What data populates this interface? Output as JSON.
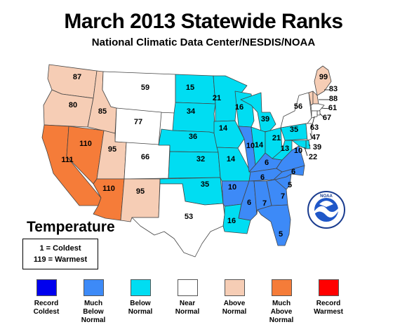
{
  "title": "March 2013 Statewide Ranks",
  "subtitle": "National Climatic Data Center/NESDIS/NOAA",
  "legend_heading": "Temperature",
  "rank_key": {
    "coldest": "1 = Coldest",
    "warmest": "119 = Warmest"
  },
  "categories": [
    {
      "id": "record-coldest",
      "label": [
        "Record",
        "Coldest"
      ],
      "color": "#0000ee"
    },
    {
      "id": "much-below-normal",
      "label": [
        "Much",
        "Below",
        "Normal"
      ],
      "color": "#3d8af7"
    },
    {
      "id": "below-normal",
      "label": [
        "Below",
        "Normal"
      ],
      "color": "#00ddf2"
    },
    {
      "id": "near-normal",
      "label": [
        "Near",
        "Normal"
      ],
      "color": "#ffffff"
    },
    {
      "id": "above-normal",
      "label": [
        "Above",
        "Normal"
      ],
      "color": "#f6cdb5"
    },
    {
      "id": "much-above-normal",
      "label": [
        "Much",
        "Above",
        "Normal"
      ],
      "color": "#f57c39"
    },
    {
      "id": "record-warmest",
      "label": [
        "Record",
        "Warmest"
      ],
      "color": "#ff0000"
    }
  ],
  "states": [
    {
      "id": "WA",
      "rank": "87",
      "category": "above-normal"
    },
    {
      "id": "OR",
      "rank": "80",
      "category": "above-normal"
    },
    {
      "id": "ID",
      "rank": "85",
      "category": "above-normal"
    },
    {
      "id": "MT",
      "rank": "59",
      "category": "near-normal"
    },
    {
      "id": "WY",
      "rank": "77",
      "category": "near-normal"
    },
    {
      "id": "CA",
      "rank": "111",
      "category": "much-above-normal"
    },
    {
      "id": "NV",
      "rank": "110",
      "category": "much-above-normal"
    },
    {
      "id": "UT",
      "rank": "95",
      "category": "above-normal"
    },
    {
      "id": "CO",
      "rank": "66",
      "category": "near-normal"
    },
    {
      "id": "AZ",
      "rank": "110",
      "category": "much-above-normal"
    },
    {
      "id": "NM",
      "rank": "95",
      "category": "above-normal"
    },
    {
      "id": "ND",
      "rank": "15",
      "category": "below-normal"
    },
    {
      "id": "SD",
      "rank": "34",
      "category": "below-normal"
    },
    {
      "id": "NE",
      "rank": "36",
      "category": "below-normal"
    },
    {
      "id": "KS",
      "rank": "32",
      "category": "below-normal"
    },
    {
      "id": "OK",
      "rank": "35",
      "category": "below-normal"
    },
    {
      "id": "TX",
      "rank": "53",
      "category": "near-normal"
    },
    {
      "id": "MN",
      "rank": "21",
      "category": "below-normal"
    },
    {
      "id": "IA",
      "rank": "14",
      "category": "below-normal"
    },
    {
      "id": "MO",
      "rank": "14",
      "category": "below-normal"
    },
    {
      "id": "AR",
      "rank": "10",
      "category": "much-below-normal"
    },
    {
      "id": "LA",
      "rank": "16",
      "category": "below-normal"
    },
    {
      "id": "WI",
      "rank": "16",
      "category": "below-normal"
    },
    {
      "id": "IL",
      "rank": "10",
      "category": "much-below-normal"
    },
    {
      "id": "MI",
      "rank": "39",
      "category": "below-normal"
    },
    {
      "id": "IN",
      "rank": "14",
      "category": "below-normal"
    },
    {
      "id": "OH",
      "rank": "21",
      "category": "below-normal"
    },
    {
      "id": "KY",
      "rank": "6",
      "category": "much-below-normal"
    },
    {
      "id": "TN",
      "rank": "6",
      "category": "much-below-normal"
    },
    {
      "id": "MS",
      "rank": "6",
      "category": "much-below-normal"
    },
    {
      "id": "AL",
      "rank": "7",
      "category": "much-below-normal"
    },
    {
      "id": "GA",
      "rank": "7",
      "category": "much-below-normal"
    },
    {
      "id": "FL",
      "rank": "5",
      "category": "much-below-normal"
    },
    {
      "id": "SC",
      "rank": "5",
      "category": "much-below-normal"
    },
    {
      "id": "NC",
      "rank": "6",
      "category": "much-below-normal"
    },
    {
      "id": "VA",
      "rank": "10",
      "category": "much-below-normal"
    },
    {
      "id": "WV",
      "rank": "13",
      "category": "below-normal"
    },
    {
      "id": "PA",
      "rank": "35",
      "category": "below-normal"
    },
    {
      "id": "NY",
      "rank": "56",
      "category": "near-normal"
    },
    {
      "id": "ME",
      "rank": "99",
      "category": "above-normal"
    },
    {
      "id": "VT",
      "rank": "83",
      "category": "above-normal"
    },
    {
      "id": "NH",
      "rank": "88",
      "category": "above-normal"
    },
    {
      "id": "MA",
      "rank": "61",
      "category": "near-normal"
    },
    {
      "id": "RI",
      "rank": "67",
      "category": "near-normal"
    },
    {
      "id": "CT",
      "rank": "63",
      "category": "near-normal"
    },
    {
      "id": "NJ",
      "rank": "47",
      "category": "near-normal"
    },
    {
      "id": "DE",
      "rank": "39",
      "category": "below-normal"
    },
    {
      "id": "MD",
      "rank": "22",
      "category": "below-normal"
    }
  ],
  "logo_text": "NOAA"
}
